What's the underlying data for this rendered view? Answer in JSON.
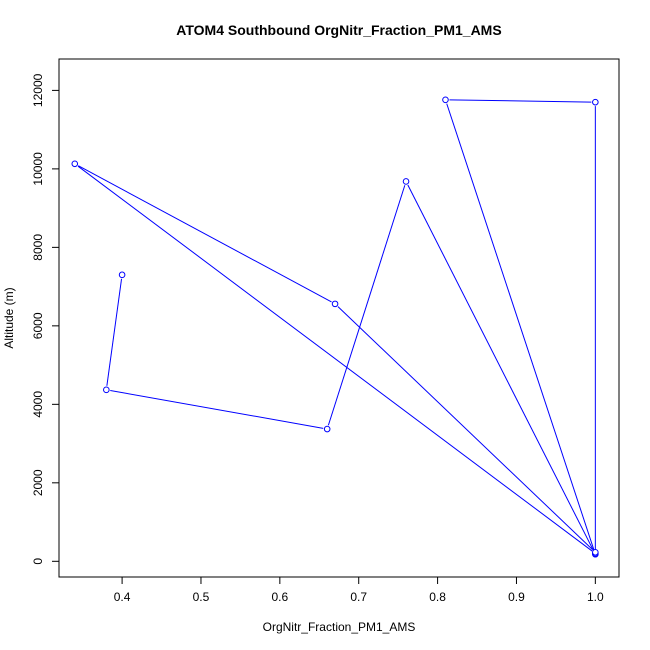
{
  "chart_data": {
    "type": "line",
    "title": "ATOM4 Southbound OrgNitr_Fraction_PM1_AMS",
    "xlabel": "OrgNitr_Fraction_PM1_AMS",
    "ylabel": "Altitude (m)",
    "xlim": [
      0.32,
      1.03
    ],
    "ylim": [
      -400,
      12800
    ],
    "xticks": [
      0.4,
      0.5,
      0.6,
      0.7,
      0.8,
      0.9,
      1.0
    ],
    "xtick_labels": [
      "0.4",
      "0.5",
      "0.6",
      "0.7",
      "0.8",
      "0.9",
      "1.0"
    ],
    "yticks": [
      0,
      2000,
      4000,
      6000,
      8000,
      10000,
      12000
    ],
    "ytick_labels": [
      "0",
      "2000",
      "4000",
      "6000",
      "8000",
      "10000",
      "12000"
    ],
    "grid": false,
    "colors": {
      "series": "#0000ff",
      "axes": "#000000"
    },
    "series": [
      {
        "x": [
          0.4,
          0.38,
          0.66,
          0.76,
          1.0,
          0.81,
          1.0,
          1.0,
          0.34,
          0.67,
          1.0
        ],
        "y": [
          7300,
          4370,
          3370,
          9680,
          180,
          11760,
          11700,
          200,
          10130,
          6560,
          230
        ]
      }
    ]
  }
}
